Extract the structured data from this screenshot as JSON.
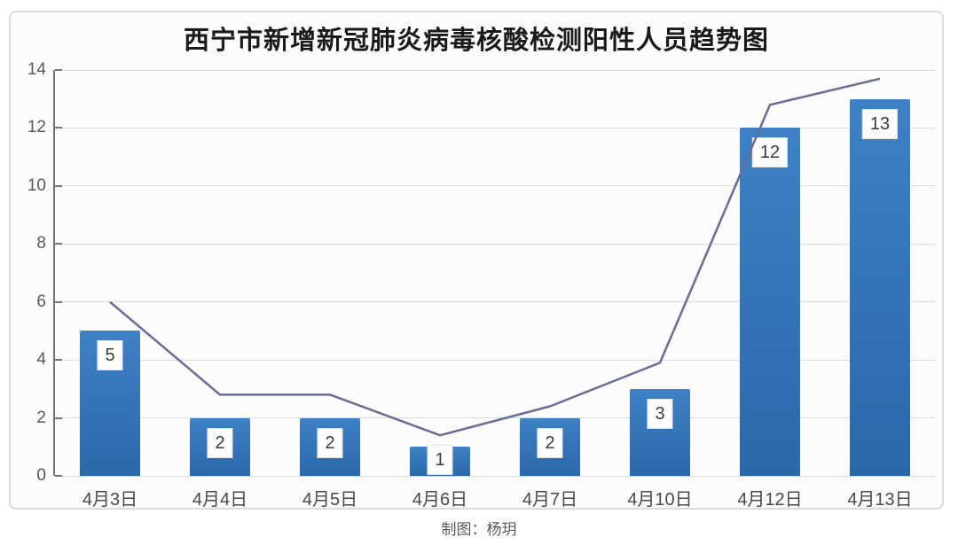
{
  "page": {
    "caption": "制图：杨玥"
  },
  "colors": {
    "bar_top": "#3e81c5",
    "bar_bottom": "#2a68a9",
    "bar_main": "#2e74b6",
    "trend_line": "#6b6b98",
    "grid": "#d9d9d9",
    "axis": "#6d7878",
    "frame": "#dcdcdc",
    "title_text": "#1a1a1a"
  },
  "chart_data": {
    "type": "bar",
    "title": "西宁市新增新冠肺炎病毒核酸检测阳性人员趋势图",
    "categories": [
      "4月3日",
      "4月4日",
      "4月5日",
      "4月6日",
      "4月7日",
      "4月10日",
      "4月12日",
      "4月13日"
    ],
    "values": [
      5,
      2,
      2,
      1,
      2,
      3,
      12,
      13
    ],
    "data_labels": [
      "5",
      "2",
      "2",
      "1",
      "2",
      "3",
      "12",
      "13"
    ],
    "line_overlay": {
      "type": "line",
      "values_estimated": [
        6,
        2.8,
        2.8,
        1.4,
        2.4,
        3.9,
        12.8,
        13.7
      ]
    },
    "xlabel": "",
    "ylabel": "",
    "ylim": [
      0,
      14
    ],
    "y_ticks": [
      0,
      2,
      4,
      6,
      8,
      10,
      12,
      14
    ],
    "grid": "horizontal",
    "legend": "none"
  }
}
